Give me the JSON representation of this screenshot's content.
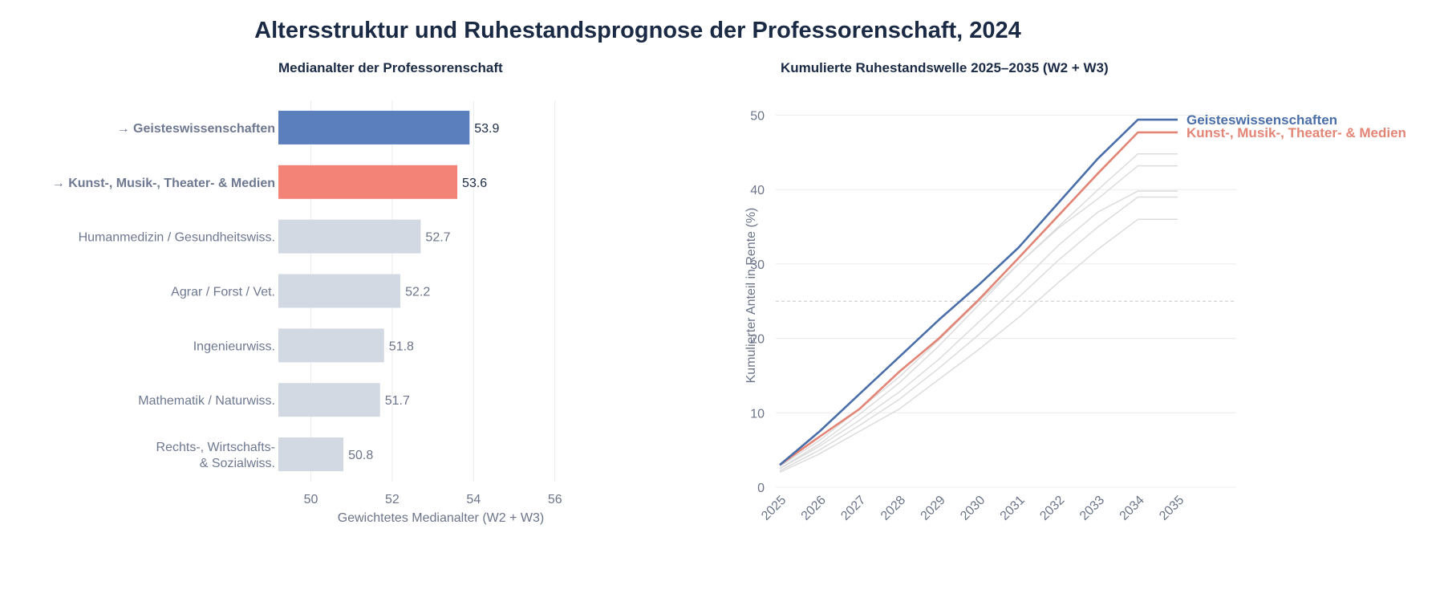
{
  "title": "Altersstruktur und Ruhestandsprognose der Professorenschaft, 2024",
  "colors": {
    "highlight_1": "#5b7fbd",
    "highlight_2": "#f28376",
    "other_bar": "#d3d9e2",
    "line_1": "#4a6ea8",
    "line_2": "#e38576",
    "other_line": "#dcdcdc",
    "axis_text": "#6b7488",
    "label_text": "#6e7890",
    "title_text": "#1b2a44"
  },
  "chart_data": [
    {
      "type": "bar",
      "orientation": "horizontal",
      "title": "Medianalter der Professorenschaft",
      "xlabel": "Gewichtetes Medianalter (W2 + W3)",
      "ylabel": "",
      "xlim": [
        49.2,
        56.4
      ],
      "xticks": [
        50,
        52,
        54,
        56
      ],
      "grid": true,
      "categories": [
        "→ Geisteswissenschaften",
        "→ Kunst-, Musik-, Theater- & Medien",
        "Humanmedizin / Gesundheitswiss.",
        "Agrar / Forst / Vet.",
        "Ingenieurwiss.",
        "Mathematik / Naturwiss.",
        "Rechts-, Wirtschafts-\n& Sozialwiss."
      ],
      "values": [
        53.9,
        53.6,
        52.7,
        52.2,
        51.8,
        51.7,
        50.8
      ],
      "value_labels": [
        "53.9",
        "53.6",
        "52.7",
        "52.2",
        "51.8",
        "51.7",
        "50.8"
      ],
      "highlighted": [
        0,
        1
      ]
    },
    {
      "type": "line",
      "title": "Kumulierte Ruhestandswelle 2025–2035 (W2 + W3)",
      "xlabel": "",
      "ylabel": "Kumulierter Anteil in Rente (%)",
      "ylim": [
        0,
        52
      ],
      "yticks": [
        0,
        10,
        20,
        30,
        40,
        50
      ],
      "grid": true,
      "reference_line": 25,
      "x": [
        "2025",
        "2026",
        "2027",
        "2028",
        "2029",
        "2030",
        "2031",
        "2032",
        "2033",
        "2034",
        "2035"
      ],
      "series": [
        {
          "name": "Geisteswissenschaften",
          "highlight": true,
          "values": [
            3.0,
            7.5,
            12.5,
            17.5,
            22.5,
            27.2,
            32.2,
            38.2,
            44.2,
            49.4,
            49.4
          ]
        },
        {
          "name": "Kunst-, Musik-, Theater- & Medien",
          "highlight": true,
          "values": [
            3.0,
            6.8,
            10.5,
            15.5,
            20.0,
            25.2,
            30.8,
            36.5,
            42.2,
            47.7,
            47.7
          ]
        },
        {
          "name": "",
          "highlight": false,
          "values": [
            2.8,
            6.3,
            10.5,
            14.8,
            19.8,
            25.0,
            30.0,
            35.0,
            40.0,
            44.8,
            44.8
          ]
        },
        {
          "name": "",
          "highlight": false,
          "values": [
            2.5,
            5.8,
            9.8,
            14.0,
            19.0,
            24.5,
            30.0,
            34.8,
            38.8,
            43.2,
            43.2
          ]
        },
        {
          "name": "",
          "highlight": false,
          "values": [
            2.5,
            5.5,
            9.0,
            12.8,
            17.2,
            22.2,
            27.2,
            32.5,
            37.0,
            39.8,
            39.8
          ]
        },
        {
          "name": "",
          "highlight": false,
          "values": [
            2.2,
            5.0,
            8.3,
            11.8,
            16.0,
            20.5,
            25.5,
            30.5,
            35.0,
            39.0,
            39.0
          ]
        },
        {
          "name": "",
          "highlight": false,
          "values": [
            2.0,
            4.5,
            7.5,
            10.5,
            14.5,
            18.5,
            22.8,
            27.5,
            32.0,
            36.0,
            36.0
          ]
        }
      ]
    }
  ]
}
